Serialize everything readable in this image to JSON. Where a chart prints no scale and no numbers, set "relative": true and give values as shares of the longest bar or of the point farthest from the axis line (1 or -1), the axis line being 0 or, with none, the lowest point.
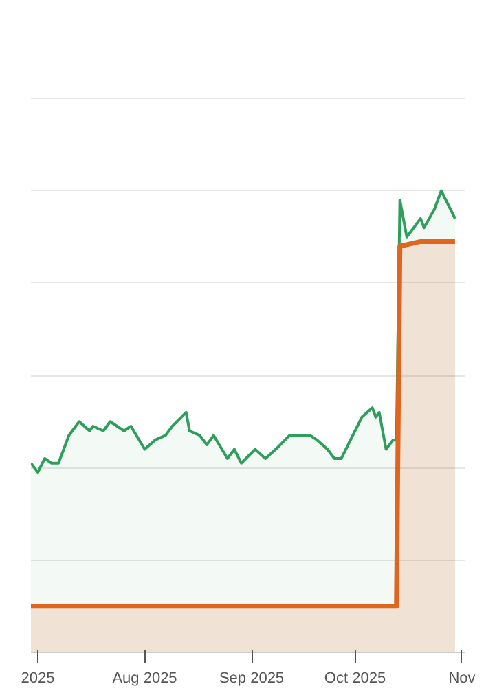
{
  "chart_data": {
    "type": "area",
    "relative": true,
    "grid": "y",
    "xlim": [
      "2025-06-29",
      "2025-11-02"
    ],
    "xticks": [
      {
        "value": "2025-07-01",
        "label": "2025"
      },
      {
        "value": "2025-08-01",
        "label": "Aug 2025"
      },
      {
        "value": "2025-09-01",
        "label": "Sep 2025"
      },
      {
        "value": "2025-10-01",
        "label": "Oct 2025"
      },
      {
        "value": "2025-11-01",
        "label": "Nov"
      }
    ],
    "series": [
      {
        "color": "#2e9e5b",
        "x": [
          "2025-06-29",
          "2025-07-01",
          "2025-07-03",
          "2025-07-05",
          "2025-07-07",
          "2025-07-10",
          "2025-07-13",
          "2025-07-16",
          "2025-07-17",
          "2025-07-20",
          "2025-07-22",
          "2025-07-26",
          "2025-07-28",
          "2025-08-01",
          "2025-08-04",
          "2025-08-07",
          "2025-08-09",
          "2025-08-13",
          "2025-08-14",
          "2025-08-17",
          "2025-08-19",
          "2025-08-21",
          "2025-08-25",
          "2025-08-27",
          "2025-08-29",
          "2025-09-02",
          "2025-09-05",
          "2025-09-08",
          "2025-09-12",
          "2025-09-15",
          "2025-09-18",
          "2025-09-20",
          "2025-09-23",
          "2025-09-25",
          "2025-09-27",
          "2025-09-29",
          "2025-10-03",
          "2025-10-06",
          "2025-10-07",
          "2025-10-08",
          "2025-10-10",
          "2025-10-12",
          "2025-10-13",
          "2025-10-14",
          "2025-10-16",
          "2025-10-20",
          "2025-10-21",
          "2025-10-24",
          "2025-10-26",
          "2025-10-28",
          "2025-10-30"
        ],
        "values": [
          0.41,
          0.39,
          0.42,
          0.41,
          0.41,
          0.47,
          0.5,
          0.48,
          0.49,
          0.48,
          0.5,
          0.48,
          0.49,
          0.44,
          0.46,
          0.47,
          0.49,
          0.52,
          0.48,
          0.47,
          0.45,
          0.47,
          0.42,
          0.44,
          0.41,
          0.44,
          0.42,
          0.44,
          0.47,
          0.47,
          0.47,
          0.46,
          0.44,
          0.42,
          0.42,
          0.45,
          0.51,
          0.53,
          0.51,
          0.52,
          0.44,
          0.46,
          0.46,
          0.98,
          0.9,
          0.94,
          0.92,
          0.96,
          1.0,
          0.97,
          0.94
        ]
      },
      {
        "color": "#e0651f",
        "x": [
          "2025-06-29",
          "2025-10-13",
          "2025-10-14",
          "2025-10-20",
          "2025-10-30"
        ],
        "values": [
          0.1,
          0.1,
          0.88,
          0.89,
          0.89
        ]
      }
    ]
  }
}
